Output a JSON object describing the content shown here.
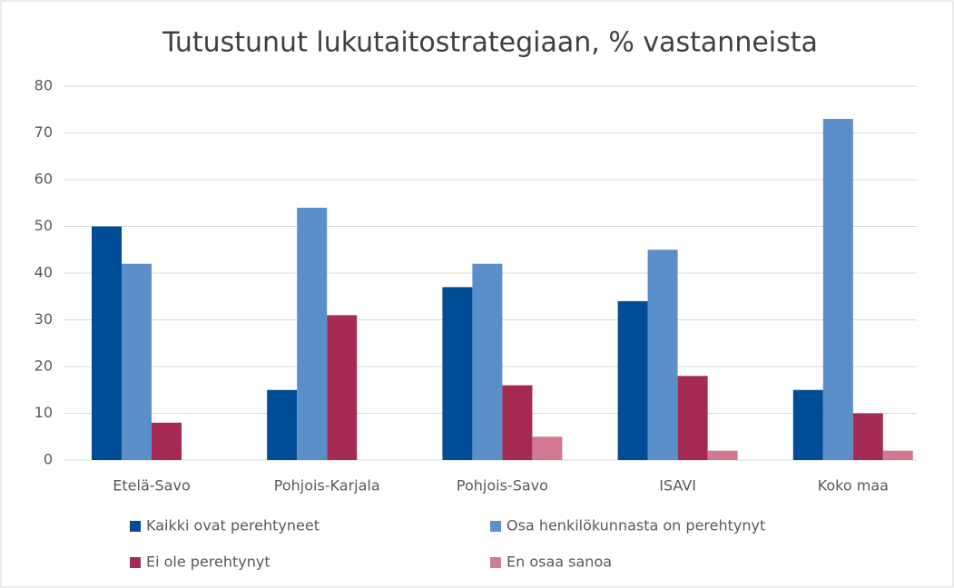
{
  "chart_data": {
    "type": "bar",
    "title": "Tutustunut lukutaitostrategiaan, % vastanneista",
    "categories": [
      "Etelä-Savo",
      "Pohjois-Karjala",
      "Pohjois-Savo",
      "ISAVI",
      "Koko maa"
    ],
    "series": [
      {
        "name": "Kaikki ovat perehtyneet",
        "color": "#004c97",
        "values": [
          50,
          15,
          37,
          34,
          15
        ]
      },
      {
        "name": "Osa henkilökunnasta on perehtynyt",
        "color": "#5b8fc9",
        "values": [
          42,
          54,
          42,
          45,
          73
        ]
      },
      {
        "name": "Ei ole perehtynyt",
        "color": "#a52a55",
        "values": [
          8,
          31,
          16,
          18,
          10
        ]
      },
      {
        "name": "En osaa sanoa",
        "color": "#d27a93",
        "values": [
          0,
          0,
          5,
          2,
          2
        ]
      }
    ],
    "ylim": [
      0,
      80
    ],
    "yticks": [
      0,
      10,
      20,
      30,
      40,
      50,
      60,
      70,
      80
    ],
    "grid": true
  }
}
